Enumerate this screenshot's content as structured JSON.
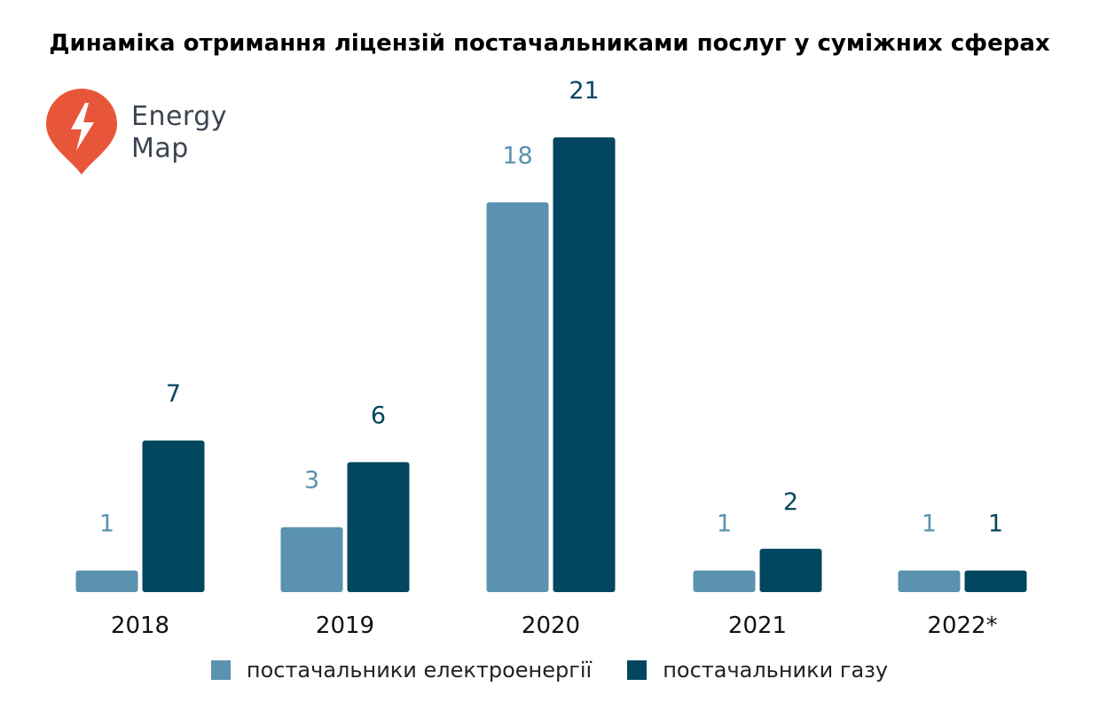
{
  "logo": {
    "line1": "Energy",
    "line2": "Map",
    "icon": "lightning-pin-icon",
    "color": "#e8563a"
  },
  "chart_data": {
    "type": "bar",
    "title": "Динаміка отримання ліцензій постачальниками послуг у суміжних сферах",
    "categories": [
      "2018",
      "2019",
      "2020",
      "2021",
      "2022*"
    ],
    "series": [
      {
        "name": "постачальники електроенергії",
        "color": "#5a92b0",
        "values": [
          1,
          3,
          18,
          1,
          1
        ]
      },
      {
        "name": "постачальники газу",
        "color": "#02465f",
        "values": [
          7,
          6,
          21,
          2,
          1
        ]
      }
    ],
    "ylim": [
      0,
      21
    ],
    "grid": false,
    "legend": "bottom-center",
    "data_labels": true
  }
}
